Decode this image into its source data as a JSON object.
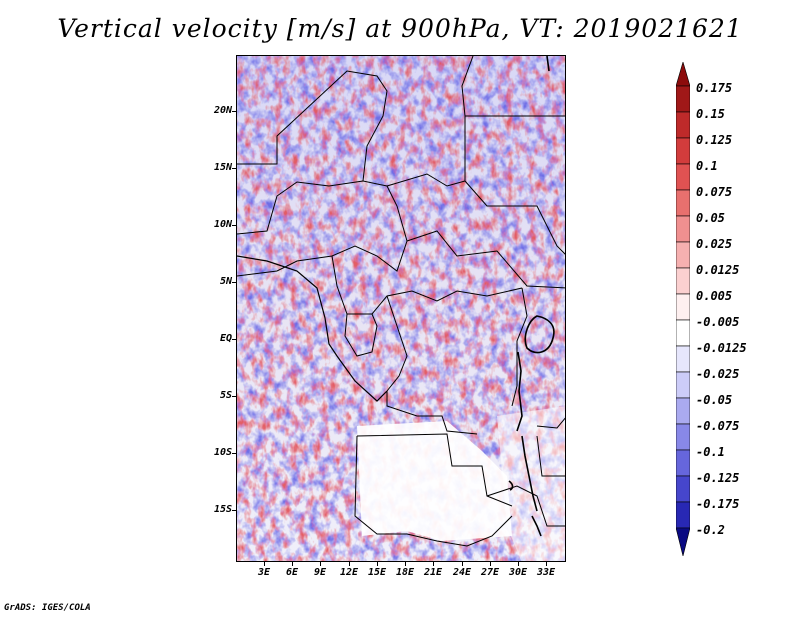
{
  "title": "Vertical velocity [m/s] at 900hPa, VT: 2019021621",
  "footer": "GrADS: IGES/COLA",
  "map": {
    "lat_labels": [
      "20N",
      "15N",
      "10N",
      "5N",
      "EQ",
      "5S",
      "10S",
      "15S"
    ],
    "lon_labels": [
      "3E",
      "6E",
      "9E",
      "12E",
      "15E",
      "18E",
      "21E",
      "24E",
      "27E",
      "30E",
      "33E"
    ]
  },
  "colorbar": {
    "labels": [
      "0.175",
      "0.15",
      "0.125",
      "0.1",
      "0.075",
      "0.05",
      "0.025",
      "0.0125",
      "0.005",
      "-0.005",
      "-0.0125",
      "-0.025",
      "-0.05",
      "-0.075",
      "-0.1",
      "-0.125",
      "-0.175",
      "-0.2"
    ],
    "colors": [
      "#a01818",
      "#be2a2a",
      "#d23c3c",
      "#e05252",
      "#e8706e",
      "#f09090",
      "#f6b0b0",
      "#fbd0d0",
      "#fef0f0",
      "#ffffff",
      "#e6e6fc",
      "#ccccf8",
      "#aaaaf0",
      "#8888e8",
      "#6666dc",
      "#4646cc",
      "#2828b4",
      "#141496"
    ],
    "top_arrow_color": "#8c0c0c",
    "bottom_arrow_color": "#0a0a82"
  }
}
